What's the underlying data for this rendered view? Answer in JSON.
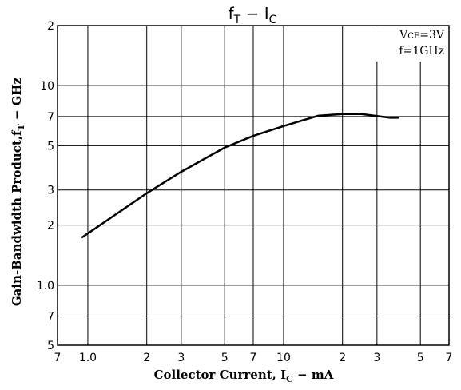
{
  "chart_data": {
    "type": "line",
    "title": [
      "f",
      "T",
      " − I",
      "C"
    ],
    "x_label": [
      "Collector Current, I",
      "C",
      " − mA"
    ],
    "y_label": [
      "Gain-Bandwidth Product,f",
      "T",
      " − GHz"
    ],
    "annotations": [
      [
        "V",
        "CE",
        "=3V"
      ],
      [
        "f=1GHz"
      ]
    ],
    "log_x": true,
    "log_y": true,
    "grid": true,
    "xlim": [
      0.7,
      70
    ],
    "xticks": [
      {
        "value": 0.7,
        "label": "7"
      },
      {
        "value": 1,
        "label": "1.0"
      },
      2,
      3,
      5,
      7,
      10,
      {
        "value": 20,
        "label": "2"
      },
      {
        "value": 30,
        "label": "3"
      },
      {
        "value": 50,
        "label": "5"
      },
      {
        "value": 70,
        "label": "7"
      }
    ],
    "ylim": [
      0.5,
      20
    ],
    "yticks": [
      {
        "value": 20,
        "label": "2"
      },
      10,
      7,
      5,
      3,
      2,
      {
        "value": 1,
        "label": "1.0"
      },
      {
        "value": 0.7,
        "label": "7"
      },
      {
        "value": 0.5,
        "label": "5"
      }
    ],
    "series": [
      {
        "color": "#000000",
        "x": [
          0.93,
          2,
          3,
          5,
          7,
          10,
          15,
          20,
          25,
          35,
          39
        ],
        "values": [
          1.73,
          2.89,
          3.7,
          4.89,
          5.6,
          6.27,
          7.06,
          7.2,
          7.2,
          6.9,
          6.9
        ]
      }
    ]
  }
}
